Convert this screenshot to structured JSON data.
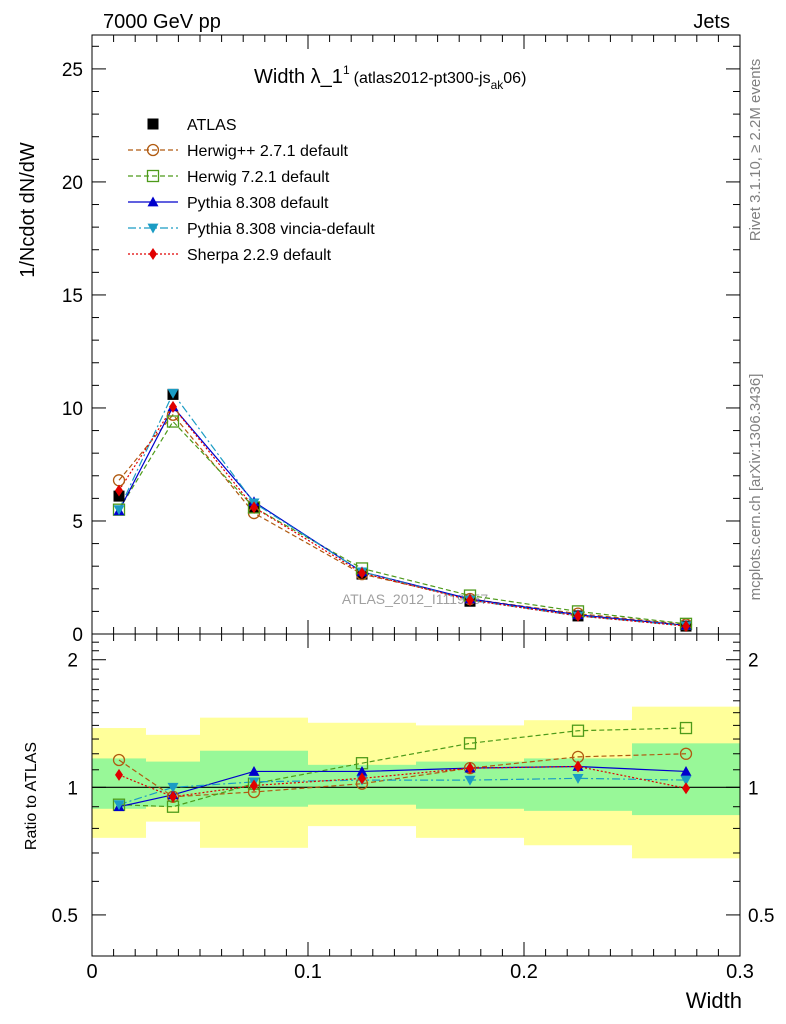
{
  "header": {
    "left": "7000 GeV pp",
    "right": "Jets"
  },
  "title": {
    "main": "Width λ_1",
    "sup": "1",
    "sub_pre": "(atlas2012-pt300-js",
    "sub_sub": "ak",
    "sub_post": "06)"
  },
  "side_text": {
    "rivet": "Rivet 3.1.10, ≥ 2.2M events",
    "mcplots": "mcplots.cern.ch [arXiv:1306.3436]"
  },
  "watermark": "ATLAS_2012_I1119557",
  "colors": {
    "atlas": "#000000",
    "herwigpp": "#b05a10",
    "herwig7": "#4d9a1a",
    "pythia": "#0000cc",
    "vincia": "#1b9cc4",
    "sherpa": "#e00000",
    "band_inner": "#98f898",
    "band_outer": "#ffff9a"
  },
  "chart_data": [
    {
      "type": "line",
      "name": "main",
      "ylabel": "1/Ncdot dN/dW",
      "xlim": [
        0,
        0.3
      ],
      "ylim": [
        0,
        26.5
      ],
      "yticks": [
        0,
        5,
        10,
        15,
        20,
        25
      ],
      "legend_placement": "top-left",
      "x": [
        0.0125,
        0.0375,
        0.075,
        0.125,
        0.175,
        0.225,
        0.275
      ],
      "series": [
        {
          "name": "ATLAS",
          "key": "atlas",
          "values": [
            6.1,
            10.6,
            5.6,
            2.65,
            1.45,
            0.8,
            0.35
          ]
        },
        {
          "name": "Herwig++ 2.7.1 default",
          "key": "herwigpp",
          "values": [
            6.8,
            9.7,
            5.35,
            2.65,
            1.55,
            0.9,
            0.42
          ]
        },
        {
          "name": "Herwig 7.2.1 default",
          "key": "herwig7",
          "values": [
            5.5,
            9.4,
            5.6,
            2.9,
            1.7,
            1.0,
            0.45
          ]
        },
        {
          "name": "Pythia 8.308 default",
          "key": "pythia",
          "values": [
            5.45,
            10.05,
            5.85,
            2.75,
            1.55,
            0.85,
            0.38
          ]
        },
        {
          "name": "Pythia 8.308 vincia-default",
          "key": "vincia",
          "values": [
            5.5,
            10.65,
            5.8,
            2.75,
            1.5,
            0.8,
            0.36
          ]
        },
        {
          "name": "Sherpa 2.2.9 default",
          "key": "sherpa",
          "values": [
            6.35,
            10.05,
            5.6,
            2.7,
            1.5,
            0.8,
            0.35
          ]
        }
      ]
    },
    {
      "type": "line",
      "name": "ratio",
      "xlabel": "Width",
      "ylabel": "Ratio to ATLAS",
      "xlim": [
        0,
        0.3
      ],
      "ylim": [
        0.4,
        2.3
      ],
      "xticks": [
        0,
        0.1,
        0.2,
        0.3
      ],
      "xtick_labels": [
        "0",
        "0.1",
        "0.2",
        "0.3"
      ],
      "yticks": [
        0.5,
        1,
        2
      ],
      "ytick_labels": [
        "0.5",
        "1",
        "2"
      ],
      "y_scale": "log",
      "x": [
        0.0125,
        0.0375,
        0.075,
        0.125,
        0.175,
        0.225,
        0.275
      ],
      "bands": {
        "edges": [
          0,
          0.025,
          0.05,
          0.1,
          0.15,
          0.2,
          0.25,
          0.3
        ],
        "inner": [
          [
            0.89,
            1.17
          ],
          [
            0.9,
            1.15
          ],
          [
            0.9,
            1.22
          ],
          [
            0.91,
            1.13
          ],
          [
            0.89,
            1.15
          ],
          [
            0.88,
            1.17
          ],
          [
            0.86,
            1.27
          ]
        ],
        "outer": [
          [
            0.76,
            1.38
          ],
          [
            0.83,
            1.33
          ],
          [
            0.72,
            1.46
          ],
          [
            0.81,
            1.42
          ],
          [
            0.76,
            1.4
          ],
          [
            0.73,
            1.44
          ],
          [
            0.68,
            1.55
          ]
        ]
      },
      "series": [
        {
          "name": "Herwig++ 2.7.1 default",
          "key": "herwigpp",
          "values": [
            1.16,
            0.95,
            0.975,
            1.02,
            1.11,
            1.18,
            1.2
          ]
        },
        {
          "name": "Herwig 7.2.1 default",
          "key": "herwig7",
          "values": [
            0.91,
            0.9,
            1.02,
            1.14,
            1.27,
            1.36,
            1.38
          ]
        },
        {
          "name": "Pythia 8.308 default",
          "key": "pythia",
          "values": [
            0.9,
            0.96,
            1.09,
            1.09,
            1.11,
            1.12,
            1.09
          ]
        },
        {
          "name": "Pythia 8.308 vincia-default",
          "key": "vincia",
          "values": [
            0.91,
            1.0,
            1.03,
            1.04,
            1.04,
            1.05,
            1.04
          ]
        },
        {
          "name": "Sherpa 2.2.9 default",
          "key": "sherpa",
          "values": [
            1.07,
            0.95,
            1.01,
            1.05,
            1.11,
            1.12,
            0.995
          ]
        }
      ]
    }
  ]
}
